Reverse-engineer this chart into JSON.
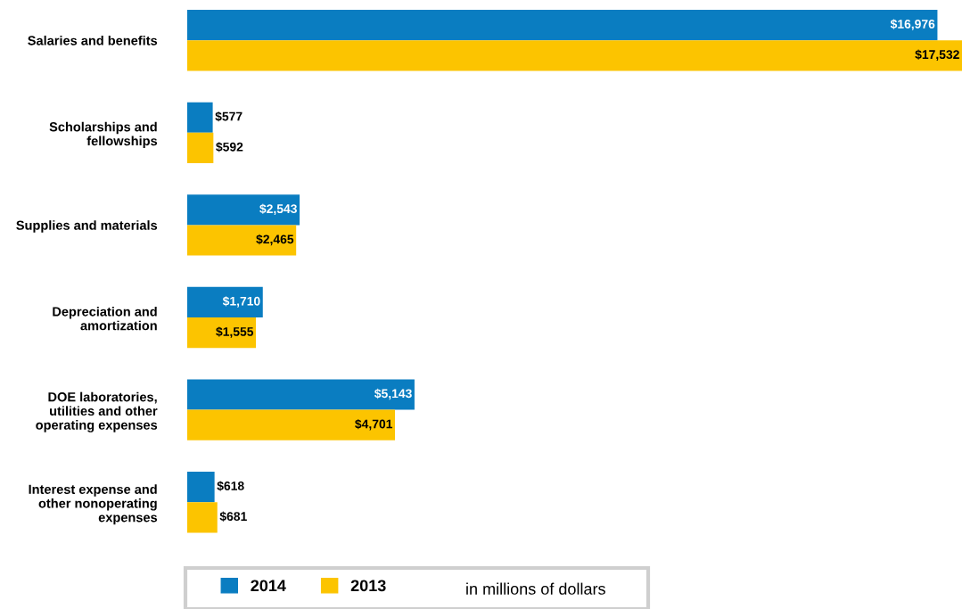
{
  "chart_data": {
    "type": "bar",
    "orientation": "horizontal",
    "categories": [
      "Salaries and benefits",
      "Scholarships and\nfellowships",
      "Supplies and materials",
      "Depreciation and\namortization",
      "DOE laboratories,\nutilities and other\noperating expenses",
      "Interest expense and\nother nonoperating\nexpenses"
    ],
    "series": [
      {
        "name": "2014",
        "color": "#0a7dc1",
        "values": [
          16976,
          577,
          2543,
          1710,
          5143,
          618
        ],
        "value_labels": [
          "$16,976",
          "$577",
          "$2,543",
          "$1,710",
          "$5,143",
          "$618"
        ]
      },
      {
        "name": "2013",
        "color": "#fcc400",
        "values": [
          17532,
          592,
          2465,
          1555,
          4701,
          681
        ],
        "value_labels": [
          "$17,532",
          "$592",
          "$2,465",
          "$1,555",
          "$4,701",
          "$681"
        ]
      }
    ],
    "xlim": [
      0,
      17532
    ],
    "tick_labels": "y",
    "grid": false,
    "legend": "bottom",
    "annotations": [
      "in millions of dollars"
    ]
  }
}
